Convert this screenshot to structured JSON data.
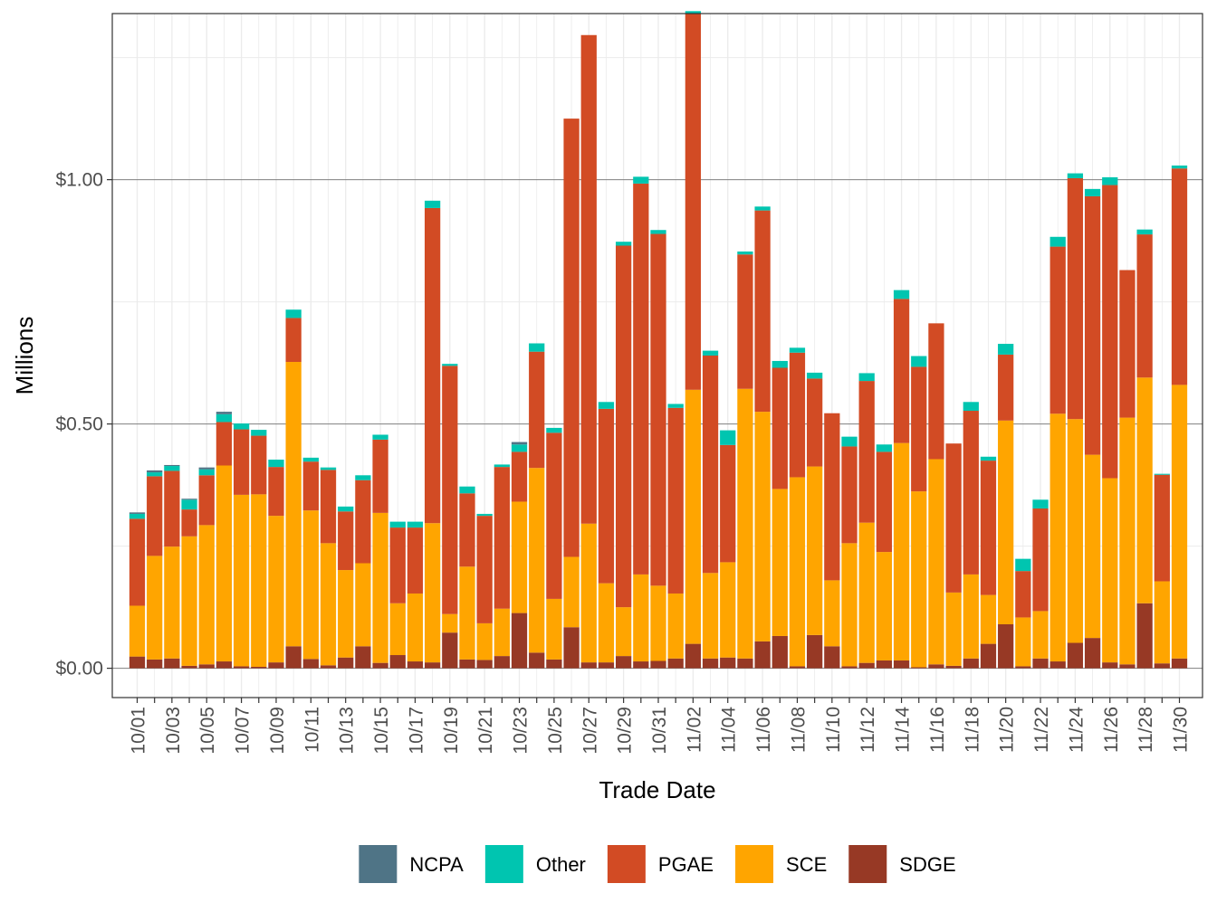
{
  "chart_data": {
    "type": "bar",
    "stacked": true,
    "title": "",
    "xlabel": "Trade Date",
    "ylabel": "Millions",
    "ylim": [
      -0.06,
      1.34
    ],
    "y_ticks": [
      {
        "value": 0.0,
        "label": "$0.00"
      },
      {
        "value": 0.5,
        "label": "$0.50"
      },
      {
        "value": 1.0,
        "label": "$1.00"
      }
    ],
    "x_tick_labels": [
      "10/01",
      "10/03",
      "10/05",
      "10/07",
      "10/09",
      "10/11",
      "10/13",
      "10/15",
      "10/17",
      "10/19",
      "10/21",
      "10/23",
      "10/25",
      "10/27",
      "10/29",
      "10/31",
      "11/02",
      "11/04",
      "11/06",
      "11/08",
      "11/10",
      "11/12",
      "11/14",
      "11/16",
      "11/18",
      "11/20",
      "11/22",
      "11/24",
      "11/26",
      "11/28",
      "11/30"
    ],
    "categories": [
      "10/01",
      "10/02",
      "10/03",
      "10/04",
      "10/05",
      "10/06",
      "10/07",
      "10/08",
      "10/09",
      "10/10",
      "10/11",
      "10/12",
      "10/13",
      "10/14",
      "10/15",
      "10/16",
      "10/17",
      "10/18",
      "10/19",
      "10/20",
      "10/21",
      "10/22",
      "10/23",
      "10/24",
      "10/25",
      "10/26",
      "10/27",
      "10/28",
      "10/29",
      "10/30",
      "10/31",
      "11/01",
      "11/02",
      "11/03",
      "11/04",
      "11/05",
      "11/06",
      "11/07",
      "11/08",
      "11/09",
      "11/10",
      "11/11",
      "11/12",
      "11/13",
      "11/14",
      "11/15",
      "11/16",
      "11/17",
      "11/18",
      "11/19",
      "11/20",
      "11/21",
      "11/22",
      "11/23",
      "11/24",
      "11/25",
      "11/26",
      "11/27",
      "11/28",
      "11/29",
      "11/30"
    ],
    "legend_position": "bottom",
    "series": [
      {
        "name": "SDGE",
        "color": "#973925",
        "values": [
          0.024,
          0.018,
          0.02,
          0.005,
          0.008,
          0.014,
          0.004,
          0.003,
          0.012,
          0.045,
          0.019,
          0.006,
          0.022,
          0.045,
          0.011,
          0.027,
          0.014,
          0.012,
          0.073,
          0.018,
          0.017,
          0.025,
          0.113,
          0.032,
          0.018,
          0.084,
          0.012,
          0.012,
          0.025,
          0.014,
          0.015,
          0.02,
          0.05,
          0.02,
          0.022,
          0.02,
          0.055,
          0.066,
          0.004,
          0.068,
          0.045,
          0.004,
          0.011,
          0.016,
          0.016,
          0.002,
          0.008,
          0.005,
          0.02,
          0.05,
          0.09,
          0.004,
          0.02,
          0.014,
          0.052,
          0.062,
          0.012,
          0.008,
          0.133,
          0.01,
          0.02
        ]
      },
      {
        "name": "SCE",
        "color": "#FFA500",
        "values": [
          0.104,
          0.212,
          0.229,
          0.265,
          0.285,
          0.401,
          0.351,
          0.353,
          0.3,
          0.582,
          0.304,
          0.25,
          0.179,
          0.17,
          0.307,
          0.106,
          0.139,
          0.285,
          0.038,
          0.19,
          0.075,
          0.097,
          0.228,
          0.378,
          0.124,
          0.144,
          0.284,
          0.162,
          0.1,
          0.178,
          0.154,
          0.133,
          0.52,
          0.175,
          0.195,
          0.552,
          0.47,
          0.301,
          0.387,
          0.345,
          0.135,
          0.252,
          0.287,
          0.222,
          0.445,
          0.36,
          0.42,
          0.15,
          0.172,
          0.1,
          0.417,
          0.1,
          0.097,
          0.507,
          0.458,
          0.375,
          0.377,
          0.505,
          0.462,
          0.168,
          0.56
        ]
      },
      {
        "name": "PGAE",
        "color": "#D24B24",
        "values": [
          0.178,
          0.163,
          0.155,
          0.055,
          0.102,
          0.089,
          0.134,
          0.12,
          0.1,
          0.09,
          0.1,
          0.15,
          0.12,
          0.17,
          0.15,
          0.155,
          0.135,
          0.645,
          0.508,
          0.15,
          0.22,
          0.29,
          0.102,
          0.238,
          0.34,
          0.897,
          1.0,
          0.357,
          0.74,
          0.8,
          0.72,
          0.38,
          0.77,
          0.445,
          0.24,
          0.275,
          0.412,
          0.248,
          0.255,
          0.18,
          0.342,
          0.198,
          0.29,
          0.205,
          0.295,
          0.255,
          0.278,
          0.305,
          0.335,
          0.275,
          0.135,
          0.095,
          0.21,
          0.342,
          0.493,
          0.529,
          0.6,
          0.302,
          0.293,
          0.218,
          0.443
        ]
      },
      {
        "name": "Other",
        "color": "#00C5B0",
        "values": [
          0.01,
          0.008,
          0.01,
          0.02,
          0.012,
          0.016,
          0.012,
          0.012,
          0.015,
          0.017,
          0.008,
          0.005,
          0.01,
          0.01,
          0.01,
          0.012,
          0.012,
          0.015,
          0.004,
          0.014,
          0.004,
          0.005,
          0.015,
          0.017,
          0.01,
          0.0,
          0.0,
          0.014,
          0.008,
          0.014,
          0.008,
          0.008,
          0.005,
          0.01,
          0.03,
          0.006,
          0.008,
          0.014,
          0.01,
          0.012,
          0.0,
          0.02,
          0.016,
          0.015,
          0.018,
          0.022,
          0.0,
          0.0,
          0.018,
          0.008,
          0.022,
          0.025,
          0.018,
          0.02,
          0.01,
          0.015,
          0.016,
          0.0,
          0.01,
          0.002,
          0.006
        ]
      },
      {
        "name": "NCPA",
        "color": "#4F7486",
        "values": [
          0.003,
          0.004,
          0.002,
          0.002,
          0.004,
          0.005,
          0.0,
          0.0,
          0.0,
          0.0,
          0.0,
          0.0,
          0.0,
          0.0,
          0.0,
          0.0,
          0.0,
          0.0,
          0.0,
          0.0,
          0.0,
          0.0,
          0.005,
          0.0,
          0.0,
          0.0,
          0.0,
          0.0,
          0.0,
          0.0,
          0.0,
          0.0,
          0.0,
          0.0,
          0.0,
          0.0,
          0.0,
          0.0,
          0.0,
          0.0,
          0.0,
          0.0,
          0.0,
          0.0,
          0.0,
          0.0,
          0.0,
          0.0,
          0.0,
          0.0,
          0.0,
          0.0,
          0.0,
          0.0,
          0.0,
          0.0,
          0.0,
          0.0,
          0.0,
          0.0,
          0.0
        ]
      }
    ],
    "legend": [
      {
        "name": "NCPA",
        "color": "#4F7486"
      },
      {
        "name": "Other",
        "color": "#00C5B0"
      },
      {
        "name": "PGAE",
        "color": "#D24B24"
      },
      {
        "name": "SCE",
        "color": "#FFA500"
      },
      {
        "name": "SDGE",
        "color": "#973925"
      }
    ]
  }
}
